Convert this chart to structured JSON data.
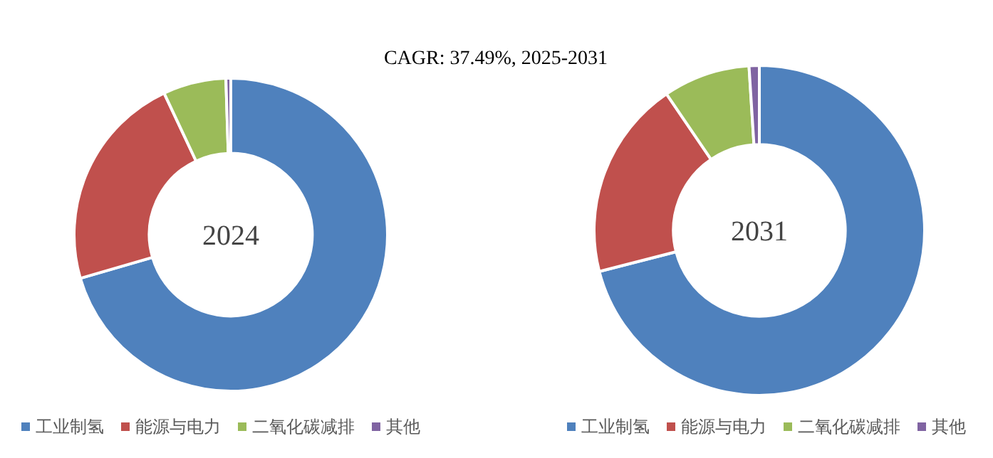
{
  "chart_data": [
    {
      "type": "donut",
      "title": "2024",
      "annotations": [
        "CAGR: 37.49%, 2025-2031"
      ],
      "categories": [
        "工业制氢",
        "能源与电力",
        "二氧化碳减排",
        "其他"
      ],
      "values": [
        70.5,
        22.5,
        6.5,
        0.5
      ],
      "colors": [
        "#4f81bd",
        "#c0504d",
        "#9bbb59",
        "#8064a2"
      ],
      "legend": "bottom"
    },
    {
      "type": "donut",
      "title": "2031",
      "categories": [
        "工业制氢",
        "能源与电力",
        "二氧化碳减排",
        "其他"
      ],
      "values": [
        71,
        19.5,
        8.5,
        1
      ],
      "colors": [
        "#4f81bd",
        "#c0504d",
        "#9bbb59",
        "#8064a2"
      ],
      "legend": "bottom"
    }
  ]
}
